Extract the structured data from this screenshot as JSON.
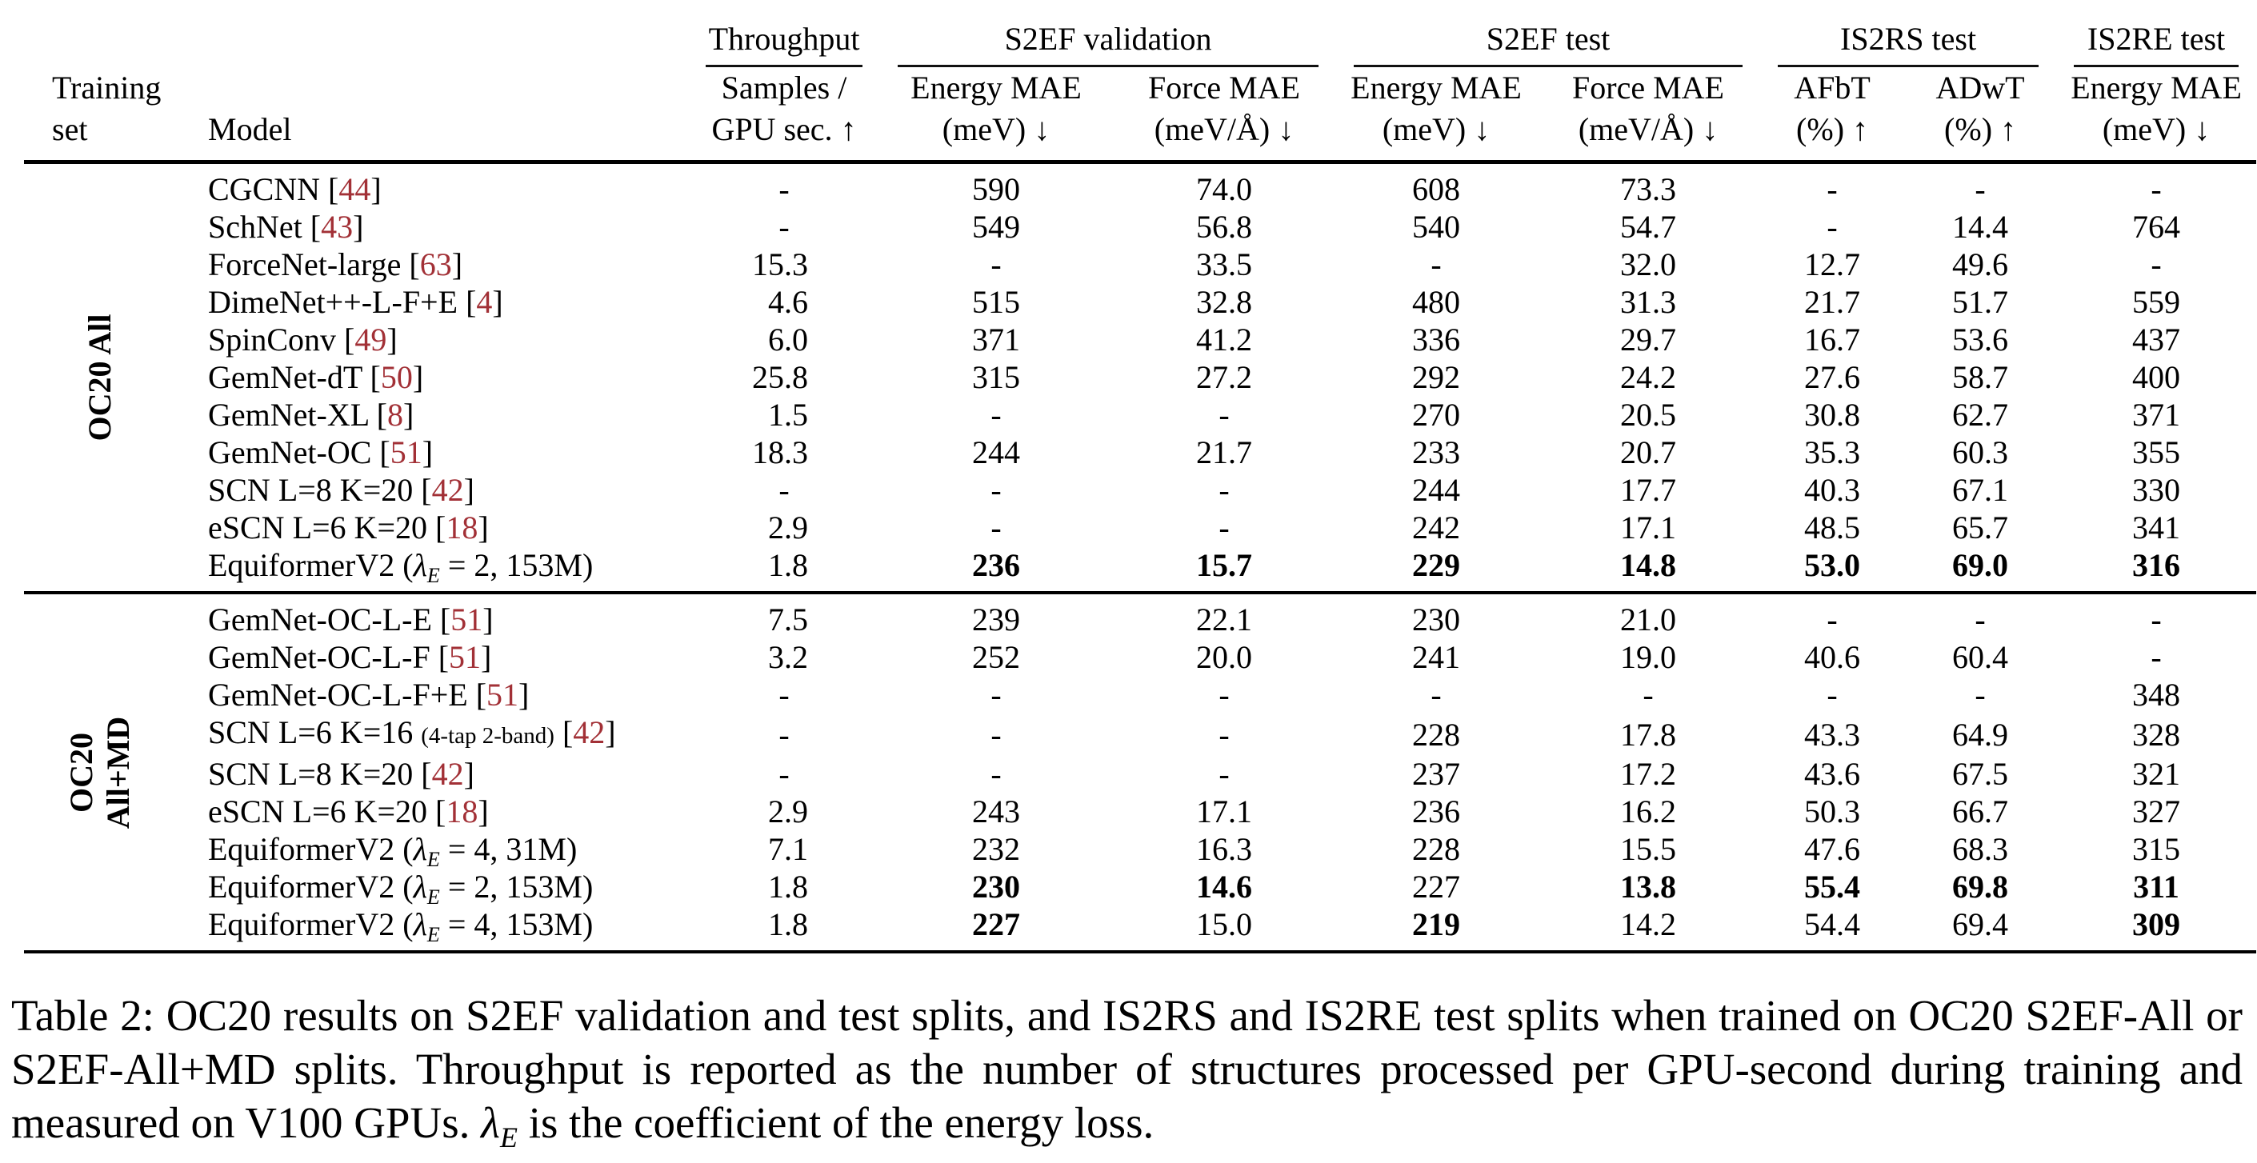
{
  "page": {
    "background": "#ffffff",
    "text_color": "#000000",
    "citation_color": "#a23036"
  },
  "header": {
    "training_set": [
      "Training",
      "set"
    ],
    "model": "Model",
    "groups": [
      {
        "label": "Throughput"
      },
      {
        "label": "S2EF validation"
      },
      {
        "label": "S2EF test"
      },
      {
        "label": "IS2RS test"
      },
      {
        "label": "IS2RE test"
      }
    ],
    "subheaders": [
      [
        "Samples /",
        "GPU sec. ↑"
      ],
      [
        "Energy MAE",
        "(meV) ↓"
      ],
      [
        "Force MAE",
        "(meV/Å) ↓"
      ],
      [
        "Energy MAE",
        "(meV) ↓"
      ],
      [
        "Force MAE",
        "(meV/Å) ↓"
      ],
      [
        "AFbT",
        "(%) ↑"
      ],
      [
        "ADwT",
        "(%) ↑"
      ],
      [
        "Energy MAE",
        "(meV) ↓"
      ]
    ]
  },
  "sections": [
    {
      "label_lines": [
        "OC20 All"
      ],
      "rows": [
        {
          "model": {
            "name": "CGCNN",
            "cite": "44"
          },
          "values": [
            "-",
            "590",
            "74.0",
            "608",
            "73.3",
            "-",
            "-",
            "-"
          ]
        },
        {
          "model": {
            "name": "SchNet",
            "cite": "43"
          },
          "values": [
            "-",
            "549",
            "56.8",
            "540",
            "54.7",
            "-",
            "14.4",
            "764"
          ]
        },
        {
          "model": {
            "name": "ForceNet-large",
            "cite": "63"
          },
          "values": [
            "15.3",
            "-",
            "33.5",
            "-",
            "32.0",
            "12.7",
            "49.6",
            "-"
          ]
        },
        {
          "model": {
            "name": "DimeNet++-L-F+E",
            "cite": "4"
          },
          "values": [
            "4.6",
            "515",
            "32.8",
            "480",
            "31.3",
            "21.7",
            "51.7",
            "559"
          ]
        },
        {
          "model": {
            "name": "SpinConv",
            "cite": "49"
          },
          "values": [
            "6.0",
            "371",
            "41.2",
            "336",
            "29.7",
            "16.7",
            "53.6",
            "437"
          ]
        },
        {
          "model": {
            "name": "GemNet-dT",
            "cite": "50"
          },
          "values": [
            "25.8",
            "315",
            "27.2",
            "292",
            "24.2",
            "27.6",
            "58.7",
            "400"
          ]
        },
        {
          "model": {
            "name": "GemNet-XL",
            "cite": "8"
          },
          "values": [
            "1.5",
            "-",
            "-",
            "270",
            "20.5",
            "30.8",
            "62.7",
            "371"
          ]
        },
        {
          "model": {
            "name": "GemNet-OC",
            "cite": "51"
          },
          "values": [
            "18.3",
            "244",
            "21.7",
            "233",
            "20.7",
            "35.3",
            "60.3",
            "355"
          ]
        },
        {
          "model": {
            "name": "SCN L=8 K=20",
            "cite": "42"
          },
          "values": [
            "-",
            "-",
            "-",
            "244",
            "17.7",
            "40.3",
            "67.1",
            "330"
          ]
        },
        {
          "model": {
            "name": "eSCN L=6 K=20",
            "cite": "18"
          },
          "values": [
            "2.9",
            "-",
            "-",
            "242",
            "17.1",
            "48.5",
            "65.7",
            "341"
          ]
        },
        {
          "model": {
            "name": "EquiformerV2",
            "lambda_e": "2",
            "size": "153M"
          },
          "values": [
            "1.8",
            {
              "v": "236",
              "b": true
            },
            {
              "v": "15.7",
              "b": true
            },
            {
              "v": "229",
              "b": true
            },
            {
              "v": "14.8",
              "b": true
            },
            {
              "v": "53.0",
              "b": true
            },
            {
              "v": "69.0",
              "b": true
            },
            {
              "v": "316",
              "b": true
            }
          ]
        }
      ]
    },
    {
      "label_lines": [
        "OC20",
        "All+MD"
      ],
      "rows": [
        {
          "model": {
            "name": "GemNet-OC-L-E",
            "cite": "51"
          },
          "values": [
            "7.5",
            "239",
            "22.1",
            "230",
            "21.0",
            "-",
            "-",
            "-"
          ]
        },
        {
          "model": {
            "name": "GemNet-OC-L-F",
            "cite": "51"
          },
          "values": [
            "3.2",
            "252",
            "20.0",
            "241",
            "19.0",
            "40.6",
            "60.4",
            "-"
          ]
        },
        {
          "model": {
            "name": "GemNet-OC-L-F+E",
            "cite": "51"
          },
          "values": [
            "-",
            "-",
            "-",
            "-",
            "-",
            "-",
            "-",
            "348"
          ]
        },
        {
          "model": {
            "name": "SCN L=6 K=16",
            "small": "(4-tap 2-band)",
            "cite": "42"
          },
          "values": [
            "-",
            "-",
            "-",
            "228",
            "17.8",
            "43.3",
            "64.9",
            "328"
          ]
        },
        {
          "model": {
            "name": "SCN L=8 K=20",
            "cite": "42"
          },
          "values": [
            "-",
            "-",
            "-",
            "237",
            "17.2",
            "43.6",
            "67.5",
            "321"
          ]
        },
        {
          "model": {
            "name": "eSCN L=6 K=20",
            "cite": "18"
          },
          "values": [
            "2.9",
            "243",
            "17.1",
            "236",
            "16.2",
            "50.3",
            "66.7",
            "327"
          ]
        },
        {
          "model": {
            "name": "EquiformerV2",
            "lambda_e": "4",
            "size": "31M"
          },
          "values": [
            "7.1",
            "232",
            "16.3",
            "228",
            "15.5",
            "47.6",
            "68.3",
            "315"
          ]
        },
        {
          "model": {
            "name": "EquiformerV2",
            "lambda_e": "2",
            "size": "153M"
          },
          "values": [
            "1.8",
            {
              "v": "230",
              "b": true
            },
            {
              "v": "14.6",
              "b": true
            },
            "227",
            {
              "v": "13.8",
              "b": true
            },
            {
              "v": "55.4",
              "b": true
            },
            {
              "v": "69.8",
              "b": true
            },
            {
              "v": "311",
              "b": true
            }
          ]
        },
        {
          "model": {
            "name": "EquiformerV2",
            "lambda_e": "4",
            "size": "153M"
          },
          "values": [
            "1.8",
            {
              "v": "227",
              "b": true
            },
            "15.0",
            {
              "v": "219",
              "b": true
            },
            "14.2",
            "54.4",
            "69.4",
            {
              "v": "309",
              "b": true
            }
          ]
        }
      ]
    }
  ],
  "caption": {
    "p1": "Table 2: OC20 results on S2EF validation and test splits, and IS2RS and IS2RE test splits when trained on OC20 S2EF-All or S2EF-All+MD splits. Throughput is reported as the number of structures processed per GPU-second during training and measured on V100 GPUs. ",
    "lambda": "λ",
    "lambda_sub": "E",
    "p2": " is the coefficient of the energy loss."
  }
}
